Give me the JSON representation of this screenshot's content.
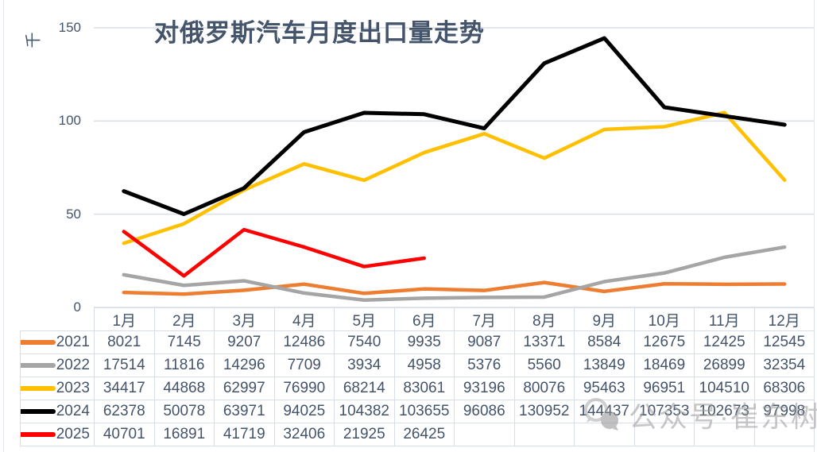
{
  "header": {
    "title": "对俄罗斯汽车月度出口量走势",
    "unit_label": "千"
  },
  "watermark": {
    "text": "公众号·崔东树"
  },
  "chart_data": {
    "type": "line",
    "title": "对俄罗斯汽车月度出口量走势",
    "xlabel": "",
    "ylabel": "千",
    "ylim": [
      0,
      150
    ],
    "y_ticks": [
      150,
      100,
      50,
      0
    ],
    "grid": true,
    "legend_position": "table-left",
    "categories": [
      "1月",
      "2月",
      "3月",
      "4月",
      "5月",
      "6月",
      "7月",
      "8月",
      "9月",
      "10月",
      "11月",
      "12月"
    ],
    "series": [
      {
        "name": "2021",
        "color": "#ED7D31",
        "values": [
          8021,
          7145,
          9207,
          12486,
          7540,
          9935,
          9087,
          13371,
          8584,
          12675,
          12425,
          12545
        ]
      },
      {
        "name": "2022",
        "color": "#A5A5A5",
        "values": [
          17514,
          11816,
          14296,
          7709,
          3934,
          4958,
          5376,
          5560,
          13849,
          18469,
          26899,
          32354
        ]
      },
      {
        "name": "2023",
        "color": "#FFC000",
        "values": [
          34417,
          44868,
          62997,
          76990,
          68214,
          83061,
          93196,
          80076,
          95463,
          96951,
          104510,
          68306
        ]
      },
      {
        "name": "2024",
        "color": "#000000",
        "values": [
          62378,
          50078,
          63971,
          94025,
          104382,
          103655,
          96086,
          130952,
          144437,
          107353,
          102673,
          97998
        ]
      },
      {
        "name": "2025",
        "color": "#FF0000",
        "values": [
          40701,
          16891,
          41719,
          32406,
          21925,
          26425
        ]
      }
    ]
  },
  "colors": {
    "text": "#44546A",
    "gridline": "#d9dee8",
    "table_border": "#d7dee9",
    "watermark": "#9b9b9b"
  }
}
